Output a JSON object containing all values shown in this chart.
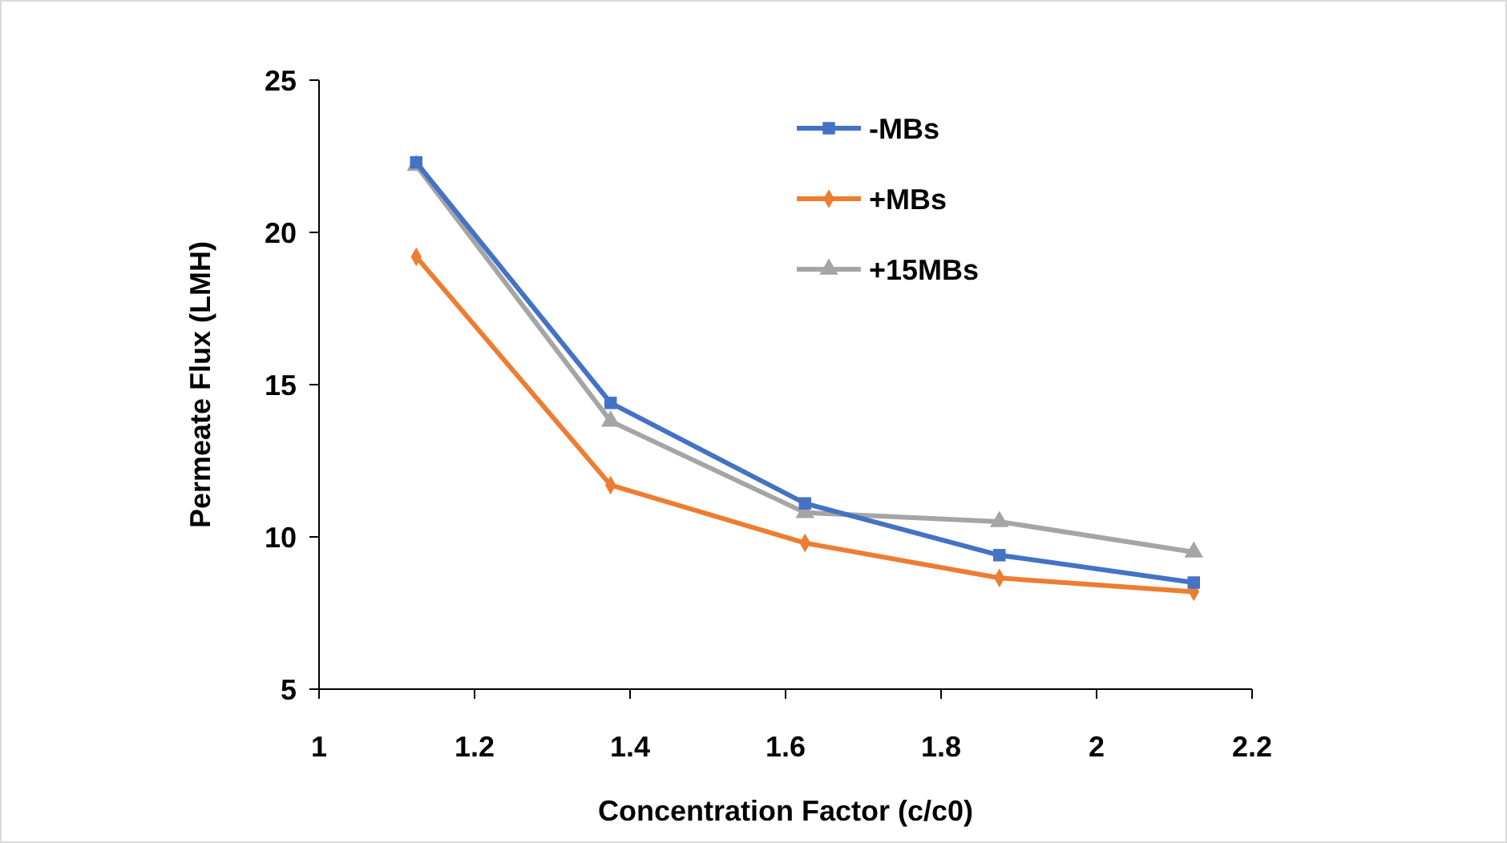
{
  "chart_data": {
    "type": "line",
    "xlabel": "Concentration Factor (c/c0)",
    "ylabel": "Permeate Flux (LMH)",
    "x": [
      1.125,
      1.375,
      1.625,
      1.875,
      2.125
    ],
    "series": [
      {
        "name": "-MBs",
        "color": "#4472c4",
        "marker": "square",
        "values": [
          22.3,
          14.4,
          11.1,
          9.4,
          8.5
        ]
      },
      {
        "name": "+MBs",
        "color": "#ed7d31",
        "marker": "diamond",
        "values": [
          19.2,
          11.7,
          9.8,
          8.65,
          8.2
        ]
      },
      {
        "name": "+15MBs",
        "color": "#a5a5a5",
        "marker": "triangle",
        "values": [
          22.2,
          13.8,
          10.8,
          10.5,
          9.5
        ]
      }
    ],
    "xlim": [
      1,
      2.2
    ],
    "xticks": [
      1,
      1.2,
      1.4,
      1.6,
      1.8,
      2,
      2.2
    ],
    "ylim": [
      5,
      25
    ],
    "yticks": [
      5,
      10,
      15,
      20,
      25
    ],
    "grid": false,
    "legend": "top",
    "line_style": "solid"
  }
}
